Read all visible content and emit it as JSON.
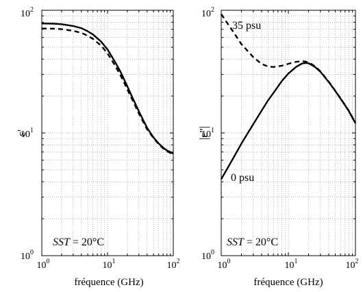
{
  "chart_data": [
    {
      "type": "line",
      "xlabel": "fréquence (GHz)",
      "ylabel": "ε'",
      "x_scale": "log",
      "y_scale": "log",
      "xlim": [
        1,
        100
      ],
      "ylim": [
        1,
        100
      ],
      "grid": true,
      "x_tick_labels": [
        {
          "base": "10",
          "exp": "0"
        },
        {
          "base": "10",
          "exp": "1"
        },
        {
          "base": "10",
          "exp": "2"
        }
      ],
      "y_tick_labels": [
        {
          "base": "10",
          "exp": "0"
        },
        {
          "base": "10",
          "exp": "1"
        },
        {
          "base": "10",
          "exp": "2"
        }
      ],
      "annotation": {
        "var": "SST",
        "rest": " = 20°C"
      },
      "series": [
        {
          "style": "solid",
          "x": [
            1,
            1.5,
            2,
            3,
            4,
            5,
            6,
            8,
            10,
            13,
            16,
            20,
            25,
            30,
            40,
            50,
            60,
            70,
            80,
            100
          ],
          "y": [
            78,
            77.8,
            77,
            74.5,
            71.5,
            67.5,
            63.5,
            55.5,
            48,
            38,
            31,
            24,
            18.5,
            15,
            11,
            9.2,
            8.2,
            7.6,
            7.2,
            6.8
          ]
        },
        {
          "style": "dashed",
          "x": [
            1,
            1.5,
            2,
            3,
            4,
            5,
            6,
            8,
            10,
            13,
            16,
            20,
            25,
            30,
            40,
            50,
            60,
            70,
            80,
            100
          ],
          "y": [
            71,
            70.8,
            70.2,
            68,
            65.5,
            62,
            58.5,
            51.5,
            44.5,
            35.5,
            29,
            22.7,
            17.7,
            14.4,
            10.7,
            9.1,
            8.1,
            7.5,
            7.1,
            6.7
          ]
        }
      ]
    },
    {
      "type": "line",
      "xlabel": "fréquence (GHz)",
      "ylabel": "|ε''|",
      "x_scale": "log",
      "y_scale": "log",
      "xlim": [
        1,
        100
      ],
      "ylim": [
        1,
        100
      ],
      "grid": true,
      "x_tick_labels": [
        {
          "base": "10",
          "exp": "0"
        },
        {
          "base": "10",
          "exp": "1"
        },
        {
          "base": "10",
          "exp": "2"
        }
      ],
      "y_tick_labels": [
        {
          "base": "10",
          "exp": "0"
        },
        {
          "base": "10",
          "exp": "1"
        },
        {
          "base": "10",
          "exp": "2"
        }
      ],
      "annotation": {
        "var": "SST",
        "rest": " = 20°C"
      },
      "series_labels": [
        "35 psu",
        "0 psu"
      ],
      "series": [
        {
          "name": "0 psu",
          "style": "solid",
          "x": [
            1,
            1.5,
            2,
            3,
            4,
            5,
            6,
            8,
            10,
            13,
            16,
            18,
            20,
            25,
            30,
            40,
            50,
            60,
            70,
            80,
            100
          ],
          "y": [
            4.2,
            6.2,
            8.2,
            11.8,
            15.2,
            18.5,
            21.2,
            26.5,
            30.5,
            34.5,
            36.8,
            37.2,
            37,
            34.5,
            31.5,
            26,
            22,
            19,
            16.8,
            15,
            12
          ]
        },
        {
          "name": "35 psu",
          "style": "dashed",
          "x": [
            1,
            1.5,
            2,
            3,
            4,
            5,
            6,
            8,
            10,
            13,
            16,
            18,
            20,
            25,
            30,
            40,
            50,
            60,
            70,
            80,
            100
          ],
          "y": [
            93,
            67,
            53,
            41.5,
            36.5,
            34.8,
            34.5,
            35.3,
            36.6,
            38,
            38.5,
            38.2,
            37.6,
            35,
            31.8,
            26.2,
            22.1,
            19.1,
            16.9,
            15.1,
            12.1
          ]
        }
      ]
    }
  ]
}
